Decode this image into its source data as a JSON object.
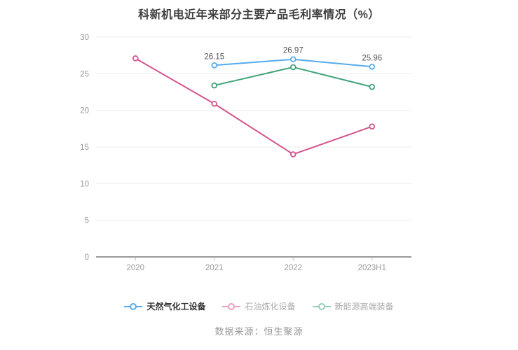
{
  "title": "科新机电近年来部分主要产品毛利率情况（%）",
  "source_note": "数据来源：恒生聚源",
  "styles": {
    "title_color": "#404040",
    "axis_label_color": "#999999",
    "grid_line_color": "#ededed",
    "axis_line_color": "#999999",
    "tick_color": "#bbbbbb",
    "data_label_color": "#555555",
    "source_color": "#999999",
    "legend_active_text_color": "#333333",
    "legend_muted_text_color": "#aaaaaa",
    "marker_fill": "#ffffff"
  },
  "chart_data": {
    "type": "line",
    "title": "科新机电近年来部分主要产品毛利率情况（%）",
    "categories": [
      "2020",
      "2021",
      "2022",
      "2023H1"
    ],
    "series": [
      {
        "name": "天然气化工设备",
        "color": "#55abee",
        "values": [
          null,
          26.15,
          26.97,
          25.96
        ],
        "point_labels": [
          "",
          "26.15",
          "26.97",
          "25.96"
        ],
        "legend_muted": false
      },
      {
        "name": "石油炼化设备",
        "color": "#d4548f",
        "values": [
          27.1,
          20.9,
          14.0,
          17.8
        ],
        "point_labels": null,
        "legend_muted": true
      },
      {
        "name": "新能源高端装备",
        "color": "#3fa377",
        "values": [
          null,
          23.4,
          25.9,
          23.2
        ],
        "point_labels": null,
        "legend_muted": true
      }
    ],
    "xlabel": "",
    "ylabel": "",
    "ylim": [
      0,
      30
    ],
    "yticks": [
      0,
      5,
      10,
      15,
      20,
      25,
      30
    ],
    "grid": true,
    "legend_position": "bottom"
  }
}
